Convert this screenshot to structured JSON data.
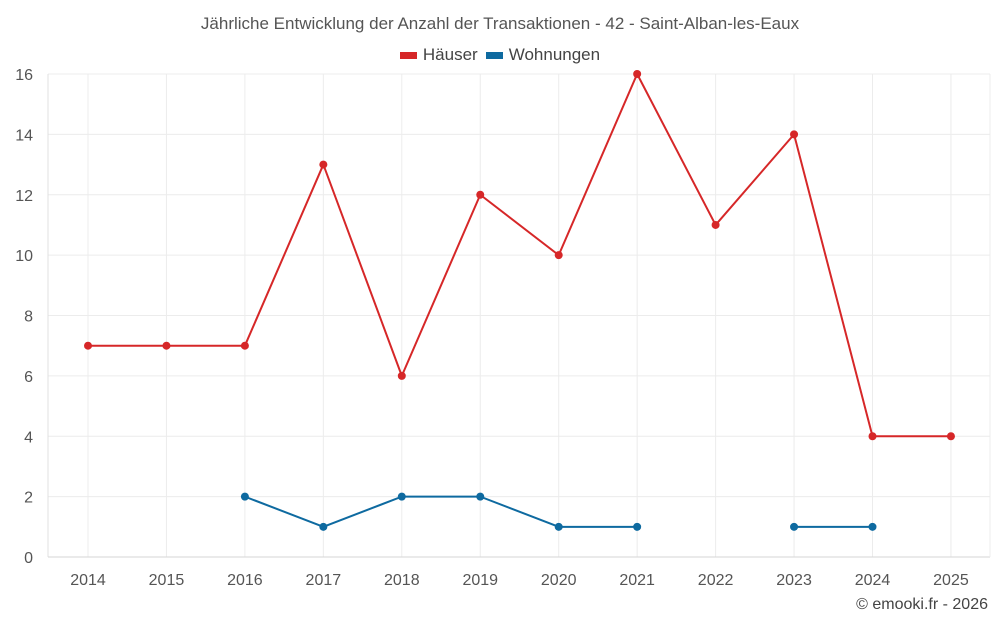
{
  "chart_data": {
    "type": "line",
    "title": "Jährliche Entwicklung der Anzahl der Transaktionen - 42 - Saint-Alban-les-Eaux",
    "categories": [
      "2014",
      "2015",
      "2016",
      "2017",
      "2018",
      "2019",
      "2020",
      "2021",
      "2022",
      "2023",
      "2024",
      "2025"
    ],
    "ylim": [
      0,
      16
    ],
    "yticks": [
      0,
      2,
      4,
      6,
      8,
      10,
      12,
      14,
      16
    ],
    "grid": true,
    "legend_position": "top-center",
    "series": [
      {
        "name": "Häuser",
        "color": "#d62728",
        "values": [
          7,
          7,
          7,
          13,
          6,
          12,
          10,
          16,
          11,
          14,
          4,
          4
        ]
      },
      {
        "name": "Wohnungen",
        "color": "#0e6aa0",
        "values": [
          null,
          null,
          2,
          1,
          2,
          2,
          1,
          1,
          null,
          1,
          1,
          null
        ]
      }
    ]
  },
  "credit": "© emooki.fr - 2026"
}
